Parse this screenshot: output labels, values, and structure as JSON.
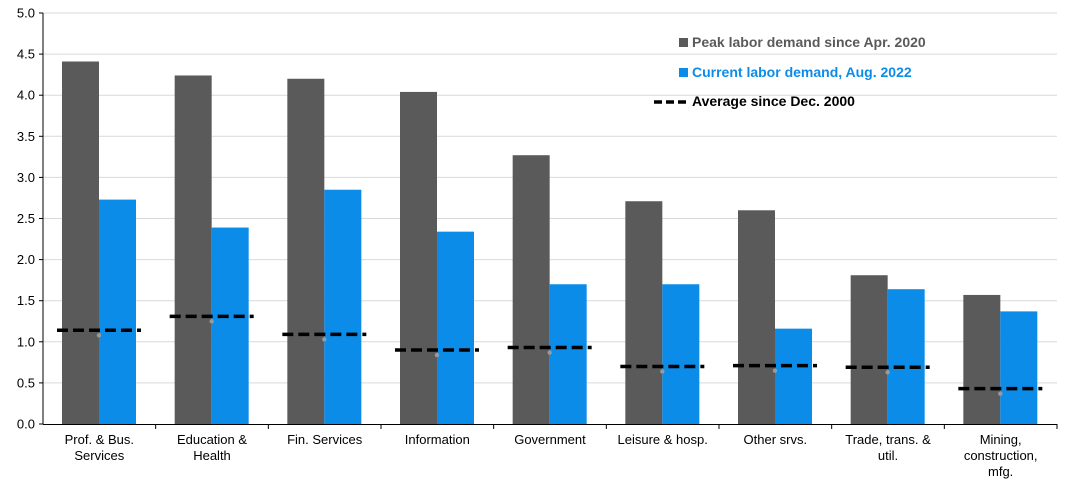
{
  "chart_data": {
    "type": "bar",
    "ylim": [
      0,
      5
    ],
    "yticks": [
      "0.0",
      "0.5",
      "1.0",
      "1.5",
      "2.0",
      "2.5",
      "3.0",
      "3.5",
      "4.0",
      "4.5",
      "5.0"
    ],
    "grid": true,
    "legend_position": "top-right",
    "categories": [
      [
        "Prof. & Bus.",
        "Services"
      ],
      [
        "Education &",
        "Health"
      ],
      [
        "Fin. Services"
      ],
      [
        "Information"
      ],
      [
        "Government"
      ],
      [
        "Leisure & hosp."
      ],
      [
        "Other srvs."
      ],
      [
        "Trade, trans. &",
        "util."
      ],
      [
        "Mining,",
        "construction,",
        "mfg."
      ]
    ],
    "series": [
      {
        "name": "Peak labor demand since Apr. 2020",
        "color": "#5a5a5a",
        "kind": "bar",
        "values": [
          4.41,
          4.24,
          4.2,
          4.04,
          3.27,
          2.71,
          2.6,
          1.81,
          1.57
        ]
      },
      {
        "name": "Current labor demand, Aug. 2022",
        "color": "#0b8ce8",
        "kind": "bar",
        "values": [
          2.73,
          2.39,
          2.85,
          2.34,
          1.7,
          1.7,
          1.16,
          1.64,
          1.37
        ]
      },
      {
        "name": "Average since Dec. 2000",
        "color": "#000000",
        "kind": "dashed-line",
        "values": [
          1.14,
          1.31,
          1.09,
          0.9,
          0.93,
          0.7,
          0.71,
          0.69,
          0.43
        ]
      }
    ]
  }
}
